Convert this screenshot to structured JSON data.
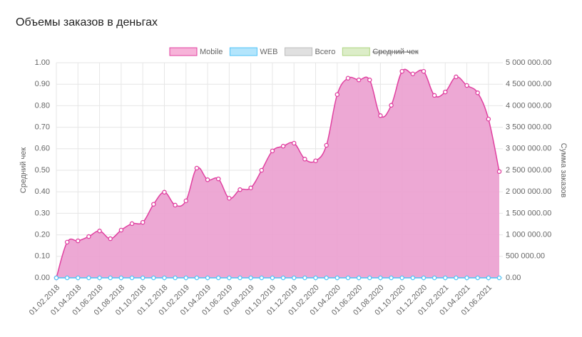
{
  "chart_data": {
    "type": "area",
    "title": "Объемы заказов в деньгах",
    "ylabel": "Средний чек",
    "y2label": "Сумма заказов",
    "categories": [
      "01.02.2018",
      null,
      "01.04.2018",
      null,
      "01.06.2018",
      null,
      "01.08.2018",
      null,
      "01.10.2018",
      null,
      "01.12.2018",
      null,
      "01.02.2019",
      null,
      "01.04.2019",
      null,
      "01.06.2019",
      null,
      "01.08.2019",
      null,
      "01.10.2019",
      null,
      "01.12.2019",
      null,
      "01.02.2020",
      null,
      "01.04.2020",
      null,
      "01.06.2020",
      null,
      "01.08.2020",
      null,
      "01.10.2020",
      null,
      "01.12.2020",
      null,
      "01.02.2021",
      null,
      "01.04.2021",
      null,
      "01.06.2021",
      null
    ],
    "series": [
      {
        "name": "Mobile",
        "color": "#e040a0",
        "fill": "#eb9ecf",
        "legend_fill": "#f7b3d9",
        "axis": "y2",
        "values": [
          0,
          830000,
          860000,
          960000,
          1090000,
          910000,
          1110000,
          1260000,
          1290000,
          1710000,
          1990000,
          1690000,
          1790000,
          2550000,
          2280000,
          2300000,
          1850000,
          2050000,
          2090000,
          2500000,
          2950000,
          3060000,
          3130000,
          2760000,
          2720000,
          3080000,
          4260000,
          4640000,
          4600000,
          4600000,
          3770000,
          4010000,
          4800000,
          4740000,
          4800000,
          4240000,
          4320000,
          4670000,
          4470000,
          4300000,
          3690000,
          2470000
        ]
      },
      {
        "name": "WEB",
        "color": "#4fc3f7",
        "legend_fill": "#b3e5fc",
        "axis": "y2",
        "values": [
          0,
          0,
          0,
          0,
          0,
          0,
          0,
          0,
          0,
          0,
          0,
          0,
          0,
          0,
          0,
          0,
          0,
          0,
          0,
          0,
          0,
          0,
          0,
          0,
          0,
          0,
          0,
          0,
          0,
          0,
          0,
          0,
          0,
          0,
          0,
          0,
          0,
          0,
          0,
          0,
          0,
          0
        ]
      },
      {
        "name": "Всего",
        "color": "#bdbdbd",
        "legend_fill": "#e0e0e0",
        "hidden": true
      },
      {
        "name": "Средний чек",
        "color": "#aed581",
        "legend_fill": "#dcedc8",
        "hidden": true,
        "strike": true
      }
    ],
    "ylim": [
      0,
      1
    ],
    "yticks": [
      {
        "value": 0,
        "label": "0.00"
      },
      {
        "value": 0.1,
        "label": "0.10"
      },
      {
        "value": 0.2,
        "label": "0.20"
      },
      {
        "value": 0.3,
        "label": "0.30"
      },
      {
        "value": 0.4,
        "label": "0.40"
      },
      {
        "value": 0.5,
        "label": "0.50"
      },
      {
        "value": 0.6,
        "label": "0.60"
      },
      {
        "value": 0.7,
        "label": "0.70"
      },
      {
        "value": 0.8,
        "label": "0.80"
      },
      {
        "value": 0.9,
        "label": "0.90"
      },
      {
        "value": 1,
        "label": "1.00"
      }
    ],
    "y2lim": [
      0,
      5000000
    ],
    "y2ticks": [
      {
        "value": 0,
        "label": "0.00"
      },
      {
        "value": 500000,
        "label": "500 000.00"
      },
      {
        "value": 1000000,
        "label": "1 000 000.00"
      },
      {
        "value": 1500000,
        "label": "1 500 000.00"
      },
      {
        "value": 2000000,
        "label": "2 000 000.00"
      },
      {
        "value": 2500000,
        "label": "2 500 000.00"
      },
      {
        "value": 3000000,
        "label": "3 000 000.00"
      },
      {
        "value": 3500000,
        "label": "3 500 000.00"
      },
      {
        "value": 4000000,
        "label": "4 000 000.00"
      },
      {
        "value": 4500000,
        "label": "4 500 000.00"
      },
      {
        "value": 5000000,
        "label": "5 000 000.00"
      }
    ],
    "grid": true
  }
}
